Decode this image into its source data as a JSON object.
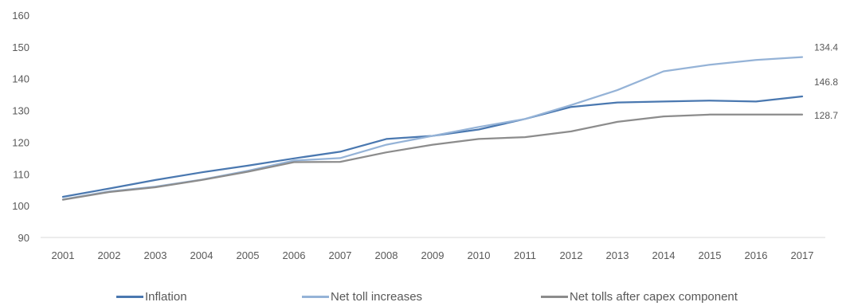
{
  "chart_data": {
    "type": "line",
    "title": "",
    "xlabel": "",
    "ylabel": "",
    "x": [
      "2001",
      "2002",
      "2003",
      "2004",
      "2005",
      "2006",
      "2007",
      "2008",
      "2009",
      "2010",
      "2011",
      "2012",
      "2013",
      "2014",
      "2015",
      "2016",
      "2017"
    ],
    "ylim": [
      90,
      160
    ],
    "yticks": [
      "90",
      "100",
      "110",
      "120",
      "130",
      "140",
      "150",
      "160"
    ],
    "grid": false,
    "legend": "bottom",
    "series": [
      {
        "name": "Inflation",
        "color": "#4a78b0",
        "values": [
          102.8,
          105.4,
          108.1,
          110.5,
          112.6,
          114.9,
          117.0,
          121.0,
          122.0,
          124.0,
          127.3,
          131.1,
          132.5,
          132.8,
          133.1,
          132.8,
          134.4
        ],
        "end_label": ""
      },
      {
        "name": "Net toll increases",
        "color": "#95b3d7",
        "values": [
          102.0,
          104.5,
          106.0,
          108.2,
          111.0,
          114.2,
          115.0,
          119.2,
          122.0,
          124.8,
          127.3,
          131.7,
          136.4,
          142.3,
          144.4,
          145.9,
          146.8
        ],
        "end_label": "146.8"
      },
      {
        "name": "Net tolls after capex component",
        "color": "#8c8c8c",
        "values": [
          101.9,
          104.3,
          105.8,
          108.1,
          110.7,
          113.7,
          113.8,
          116.8,
          119.2,
          121.0,
          121.6,
          123.4,
          126.4,
          128.1,
          128.7,
          128.7,
          128.7
        ],
        "end_label": "128.7"
      }
    ],
    "annotations": [
      "146.8",
      "134.4",
      "128.7"
    ]
  }
}
